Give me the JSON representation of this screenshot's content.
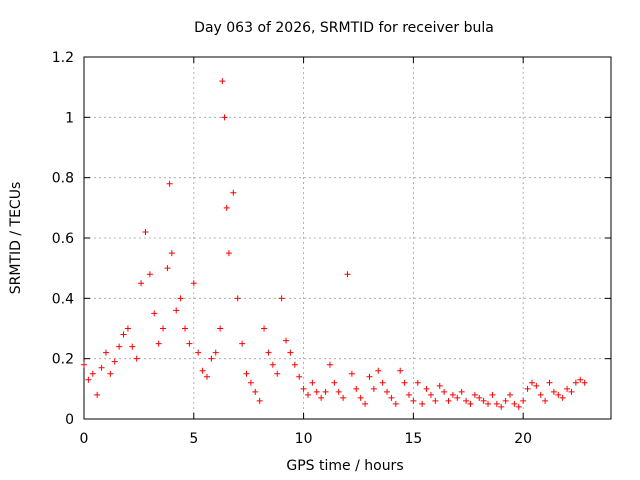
{
  "chart_data": {
    "type": "scatter",
    "title": "Day 063 of 2026, SRMTID for receiver bula",
    "xlabel": "GPS time / hours",
    "ylabel": "SRMTID / TECUs",
    "xlim": [
      0,
      24
    ],
    "ylim": [
      0,
      1.2
    ],
    "x_ticks": [
      0,
      5,
      10,
      15,
      20
    ],
    "x_tick_labels": [
      "0",
      "5",
      "10",
      "15",
      "20"
    ],
    "y_ticks": [
      0,
      0.2,
      0.4,
      0.6,
      0.8,
      1.0,
      1.2
    ],
    "y_tick_labels": [
      "0",
      "0.2",
      "0.4",
      "0.6",
      "0.8",
      "1",
      "1.2"
    ],
    "grid": true,
    "marker": "+",
    "color": "#ff0000",
    "series": [
      {
        "name": "SRMTID",
        "x": [
          0.0,
          0.2,
          0.4,
          0.6,
          0.8,
          1.0,
          1.2,
          1.4,
          1.6,
          1.8,
          2.0,
          2.2,
          2.4,
          2.6,
          2.8,
          3.0,
          3.2,
          3.4,
          3.6,
          3.8,
          3.9,
          4.0,
          4.2,
          4.4,
          4.6,
          4.8,
          5.0,
          5.2,
          5.4,
          5.6,
          5.8,
          6.0,
          6.2,
          6.3,
          6.4,
          6.5,
          6.6,
          6.8,
          7.0,
          7.2,
          7.4,
          7.6,
          7.8,
          8.0,
          8.2,
          8.4,
          8.6,
          8.8,
          9.0,
          9.2,
          9.4,
          9.6,
          9.8,
          10.0,
          10.2,
          10.4,
          10.6,
          10.8,
          11.0,
          11.2,
          11.4,
          11.6,
          11.8,
          12.0,
          12.2,
          12.4,
          12.6,
          12.8,
          13.0,
          13.2,
          13.4,
          13.6,
          13.8,
          14.0,
          14.2,
          14.4,
          14.6,
          14.8,
          15.0,
          15.2,
          15.4,
          15.6,
          15.8,
          16.0,
          16.2,
          16.4,
          16.6,
          16.8,
          17.0,
          17.2,
          17.4,
          17.6,
          17.8,
          18.0,
          18.2,
          18.4,
          18.6,
          18.8,
          19.0,
          19.2,
          19.4,
          19.6,
          19.8,
          20.0,
          20.2,
          20.4,
          20.6,
          20.8,
          21.0,
          21.2,
          21.4,
          21.6,
          21.8,
          22.0,
          22.2,
          22.4,
          22.6,
          22.8
        ],
        "y": [
          0.18,
          0.13,
          0.15,
          0.08,
          0.17,
          0.22,
          0.15,
          0.19,
          0.24,
          0.28,
          0.3,
          0.24,
          0.2,
          0.45,
          0.62,
          0.48,
          0.35,
          0.25,
          0.3,
          0.5,
          0.78,
          0.55,
          0.36,
          0.4,
          0.3,
          0.25,
          0.45,
          0.22,
          0.16,
          0.14,
          0.2,
          0.22,
          0.3,
          1.12,
          1.0,
          0.7,
          0.55,
          0.75,
          0.4,
          0.25,
          0.15,
          0.12,
          0.09,
          0.06,
          0.3,
          0.22,
          0.18,
          0.15,
          0.4,
          0.26,
          0.22,
          0.18,
          0.14,
          0.1,
          0.08,
          0.12,
          0.09,
          0.07,
          0.09,
          0.18,
          0.12,
          0.09,
          0.07,
          0.48,
          0.15,
          0.1,
          0.07,
          0.05,
          0.14,
          0.1,
          0.16,
          0.12,
          0.09,
          0.07,
          0.05,
          0.16,
          0.12,
          0.08,
          0.06,
          0.12,
          0.05,
          0.1,
          0.08,
          0.06,
          0.11,
          0.09,
          0.06,
          0.08,
          0.07,
          0.09,
          0.06,
          0.05,
          0.08,
          0.07,
          0.06,
          0.05,
          0.08,
          0.05,
          0.04,
          0.06,
          0.08,
          0.05,
          0.04,
          0.06,
          0.1,
          0.12,
          0.11,
          0.08,
          0.06,
          0.12,
          0.09,
          0.08,
          0.07,
          0.1,
          0.09,
          0.12,
          0.13,
          0.12
        ]
      }
    ]
  }
}
